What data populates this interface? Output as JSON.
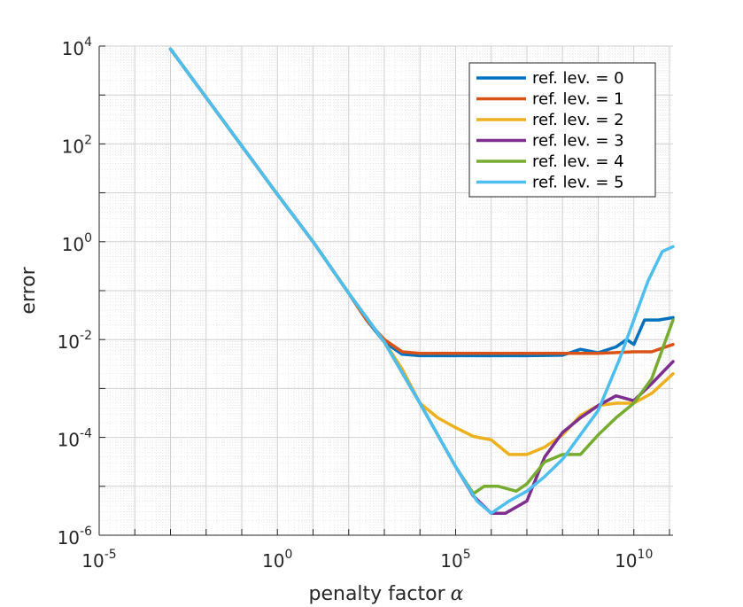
{
  "chart_data": {
    "type": "line",
    "title": "",
    "xlabel": "penalty factor",
    "xlabel_symbol": "α",
    "ylabel": "error",
    "xscale": "log",
    "yscale": "log",
    "xlim_exp": [
      -5,
      11.1
    ],
    "ylim_exp": [
      -6,
      4
    ],
    "grid": true,
    "minor_grid": true,
    "legend_position": "top-right",
    "x_ticks": [
      {
        "base": "10",
        "exp": "-5",
        "value_exp": -5
      },
      {
        "base": "10",
        "exp": "0",
        "value_exp": 0
      },
      {
        "base": "10",
        "exp": "5",
        "value_exp": 5
      },
      {
        "base": "10",
        "exp": "10",
        "value_exp": 10
      }
    ],
    "y_ticks": [
      {
        "base": "10",
        "exp": "4",
        "value_exp": 4
      },
      {
        "base": "10",
        "exp": "2",
        "value_exp": 2
      },
      {
        "base": "10",
        "exp": "0",
        "value_exp": 0
      },
      {
        "base": "10",
        "exp": "-2",
        "value_exp": -2
      },
      {
        "base": "10",
        "exp": "-4",
        "value_exp": -4
      },
      {
        "base": "10",
        "exp": "-6",
        "value_exp": -6
      }
    ],
    "series": [
      {
        "name": "ref. lev. = 0",
        "color": "#0072BD",
        "points_log10": [
          [
            -3,
            3.94
          ],
          [
            0,
            0.97
          ],
          [
            1,
            0
          ],
          [
            2,
            -1.05
          ],
          [
            2.5,
            -1.6
          ],
          [
            3,
            -2.05
          ],
          [
            3.5,
            -2.3
          ],
          [
            4,
            -2.33
          ],
          [
            5,
            -2.33
          ],
          [
            6,
            -2.33
          ],
          [
            7,
            -2.33
          ],
          [
            8,
            -2.32
          ],
          [
            8.5,
            -2.2
          ],
          [
            9,
            -2.27
          ],
          [
            9.5,
            -2.15
          ],
          [
            9.8,
            -2.0
          ],
          [
            10,
            -2.1
          ],
          [
            10.3,
            -1.6
          ],
          [
            10.7,
            -1.6
          ],
          [
            11.1,
            -1.55
          ]
        ]
      },
      {
        "name": "ref. lev. = 1",
        "color": "#D95319",
        "points_log10": [
          [
            -3,
            3.94
          ],
          [
            0,
            0.97
          ],
          [
            1,
            0
          ],
          [
            2,
            -1.05
          ],
          [
            2.5,
            -1.6
          ],
          [
            3,
            -2.0
          ],
          [
            3.5,
            -2.25
          ],
          [
            4,
            -2.28
          ],
          [
            5,
            -2.28
          ],
          [
            6,
            -2.28
          ],
          [
            7,
            -2.28
          ],
          [
            8,
            -2.28
          ],
          [
            9,
            -2.28
          ],
          [
            10,
            -2.25
          ],
          [
            10.5,
            -2.25
          ],
          [
            11.1,
            -2.1
          ]
        ]
      },
      {
        "name": "ref. lev. = 2",
        "color": "#EDB120",
        "points_log10": [
          [
            -3,
            3.94
          ],
          [
            0,
            0.97
          ],
          [
            1,
            0
          ],
          [
            2,
            -1.05
          ],
          [
            3,
            -2.05
          ],
          [
            3.5,
            -2.6
          ],
          [
            4,
            -3.3
          ],
          [
            4.5,
            -3.6
          ],
          [
            5,
            -3.8
          ],
          [
            5.5,
            -3.98
          ],
          [
            6,
            -4.05
          ],
          [
            6.5,
            -4.35
          ],
          [
            7,
            -4.35
          ],
          [
            7.5,
            -4.2
          ],
          [
            8,
            -3.95
          ],
          [
            8.5,
            -3.55
          ],
          [
            9,
            -3.35
          ],
          [
            9.5,
            -3.3
          ],
          [
            10,
            -3.3
          ],
          [
            10.5,
            -3.1
          ],
          [
            11.1,
            -2.7
          ]
        ]
      },
      {
        "name": "ref. lev. = 3",
        "color": "#7E2F8E",
        "points_log10": [
          [
            -3,
            3.94
          ],
          [
            0,
            0.97
          ],
          [
            1,
            0
          ],
          [
            2,
            -1.05
          ],
          [
            3,
            -2.05
          ],
          [
            4,
            -3.3
          ],
          [
            5,
            -4.6
          ],
          [
            5.5,
            -5.2
          ],
          [
            6,
            -5.55
          ],
          [
            6.4,
            -5.55
          ],
          [
            7,
            -5.3
          ],
          [
            7.5,
            -4.4
          ],
          [
            8,
            -3.9
          ],
          [
            8.5,
            -3.6
          ],
          [
            9,
            -3.35
          ],
          [
            9.5,
            -3.15
          ],
          [
            10,
            -3.25
          ],
          [
            10.5,
            -2.9
          ],
          [
            11.1,
            -2.45
          ]
        ]
      },
      {
        "name": "ref. lev. = 4",
        "color": "#77AC30",
        "points_log10": [
          [
            -3,
            3.94
          ],
          [
            0,
            0.97
          ],
          [
            1,
            0
          ],
          [
            2,
            -1.05
          ],
          [
            3,
            -2.05
          ],
          [
            4,
            -3.3
          ],
          [
            5,
            -4.6
          ],
          [
            5.5,
            -5.15
          ],
          [
            5.8,
            -5.0
          ],
          [
            6.2,
            -5.0
          ],
          [
            6.7,
            -5.1
          ],
          [
            7,
            -4.95
          ],
          [
            7.5,
            -4.5
          ],
          [
            8,
            -4.35
          ],
          [
            8.5,
            -4.35
          ],
          [
            9,
            -3.95
          ],
          [
            9.5,
            -3.6
          ],
          [
            10,
            -3.3
          ],
          [
            10.5,
            -2.8
          ],
          [
            11.1,
            -1.6
          ]
        ]
      },
      {
        "name": "ref. lev. = 5",
        "color": "#4DBEEE",
        "points_log10": [
          [
            -3,
            3.94
          ],
          [
            0,
            0.97
          ],
          [
            1,
            0
          ],
          [
            2,
            -1.05
          ],
          [
            3,
            -2.05
          ],
          [
            4,
            -3.3
          ],
          [
            5,
            -4.6
          ],
          [
            5.6,
            -5.3
          ],
          [
            6,
            -5.55
          ],
          [
            6.5,
            -5.3
          ],
          [
            7,
            -5.1
          ],
          [
            7.5,
            -4.8
          ],
          [
            8,
            -4.45
          ],
          [
            9,
            -3.45
          ],
          [
            9.6,
            -2.4
          ],
          [
            10,
            -1.6
          ],
          [
            10.4,
            -0.8
          ],
          [
            10.8,
            -0.2
          ],
          [
            11.1,
            -0.1
          ]
        ]
      }
    ]
  }
}
